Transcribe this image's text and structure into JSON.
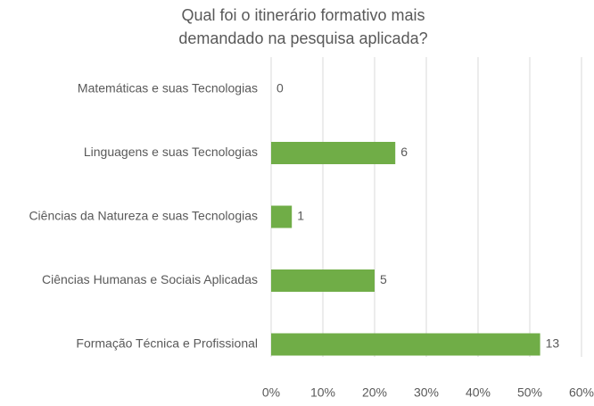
{
  "chart_data": {
    "type": "barh",
    "title": [
      "Qual foi o itinerário formativo mais",
      "demandado na pesquisa aplicada?"
    ],
    "categories": [
      "Matemáticas e suas Tecnologias",
      "Linguagens e suas Tecnologias",
      "Ciências da Natureza e suas Tecnologias",
      "Ciências Humanas e Sociais Aplicadas",
      "Formação Técnica e Profissional"
    ],
    "values": [
      0,
      24,
      4,
      20,
      52
    ],
    "value_labels": [
      "0",
      "6",
      "1",
      "5",
      "13"
    ],
    "color": "#70ad47",
    "xlim": [
      0,
      60
    ],
    "xticks": [
      {
        "value": 0,
        "label": "0%"
      },
      {
        "value": 10,
        "label": "10%"
      },
      {
        "value": 20,
        "label": "20%"
      },
      {
        "value": 30,
        "label": "30%"
      },
      {
        "value": 40,
        "label": "40%"
      },
      {
        "value": 50,
        "label": "50%"
      },
      {
        "value": 60,
        "label": "60%"
      }
    ],
    "grid": true
  }
}
